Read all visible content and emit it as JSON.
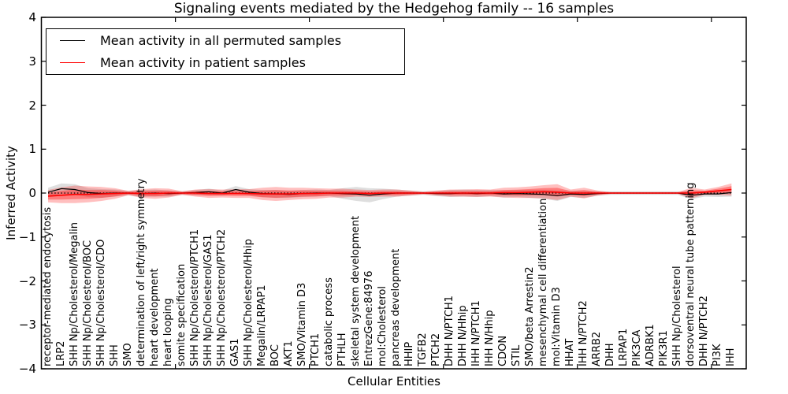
{
  "chart_data": {
    "type": "line",
    "title": "Signaling events mediated by the Hedgehog family -- 16 samples",
    "xlabel": "Cellular Entities",
    "ylabel": "Inferred Activity",
    "ylim": [
      -4,
      4
    ],
    "yticks": [
      4,
      3,
      2,
      1,
      0,
      -1,
      -2,
      -3,
      -4
    ],
    "ytick_labels": [
      "4",
      "3",
      "2",
      "1",
      "0",
      "−1",
      "−2",
      "−3",
      "−4"
    ],
    "xticks": [
      10,
      20,
      30,
      40,
      50
    ],
    "zero_line": true,
    "grid": false,
    "legend": {
      "position": "upper left",
      "entries": [
        {
          "label": "Mean activity in all permuted samples",
          "color": "#000000"
        },
        {
          "label": "Mean activity in patient samples",
          "color": "#ff0000"
        }
      ]
    },
    "categories": [
      "receptor-mediated endocytosis",
      "LRP2",
      "SHH Np/Cholesterol/Megalin",
      "SHH Np/Cholesterol/BOC",
      "SHH Np/Cholesterol/CDO",
      "SHH",
      "SMO",
      "determination of left/right symmetry",
      "heart development",
      "heart looping",
      "somite specification",
      "SHH Np/Cholesterol/PTCH1",
      "SHH Np/Cholesterol/GAS1",
      "SHH Np/Cholesterol/PTCH2",
      "GAS1",
      "SHH Np/Cholesterol/Hhip",
      "Megalin/LRPAP1",
      "BOC",
      "AKT1",
      "SMO/Vitamin D3",
      "PTCH1",
      "catabolic process",
      "PTHLH",
      "skeletal system development",
      "EntrezGene:84976",
      "mol:Cholesterol",
      "pancreas development",
      "HHIP",
      "TGFB2",
      "PTCH2",
      "DHH N/PTCH1",
      "DHH N/Hhip",
      "IHH N/PTCH1",
      "IHH N/Hhip",
      "CDON",
      "STIL",
      "SMO/beta Arrestin2",
      "mesenchymal cell differentiation",
      "mol:Vitamin D3",
      "HHAT",
      "IHH N/PTCH2",
      "ARRB2",
      "DHH",
      "LRPAP1",
      "PIK3CA",
      "ADRBK1",
      "PIK3R1",
      "SHH Np/Cholesterol",
      "dorsoventral neural tube patterning",
      "DHH N/PTCH2",
      "PI3K",
      "IHH"
    ],
    "series": [
      {
        "name": "Mean activity in all permuted samples",
        "color": "#000000",
        "band_color": "#a0a0a0",
        "values": [
          0.02,
          0.1,
          0.08,
          0.01,
          -0.01,
          0,
          0,
          -0.01,
          0,
          -0.01,
          0,
          0.01,
          0.03,
          0,
          0.08,
          0.02,
          -0.01,
          -0.02,
          -0.03,
          -0.01,
          0,
          0,
          -0.01,
          -0.02,
          -0.05,
          -0.02,
          0,
          0,
          0,
          -0.01,
          -0.01,
          0,
          -0.01,
          0,
          -0.02,
          -0.01,
          -0.02,
          -0.03,
          -0.06,
          -0.02,
          -0.03,
          -0.01,
          0,
          0,
          0,
          0,
          0,
          0,
          -0.05,
          -0.02,
          -0.02,
          0.01
        ],
        "band_halfwidth": [
          0.1,
          0.12,
          0.12,
          0.1,
          0.1,
          0.08,
          0.05,
          0.08,
          0.08,
          0.07,
          0.04,
          0.06,
          0.07,
          0.06,
          0.08,
          0.07,
          0.08,
          0.09,
          0.08,
          0.08,
          0.08,
          0.07,
          0.12,
          0.16,
          0.16,
          0.12,
          0.08,
          0.06,
          0.04,
          0.06,
          0.08,
          0.08,
          0.08,
          0.07,
          0.08,
          0.08,
          0.09,
          0.1,
          0.12,
          0.07,
          0.08,
          0.05,
          0.04,
          0.04,
          0.04,
          0.04,
          0.04,
          0.04,
          0.09,
          0.06,
          0.07,
          0.09
        ]
      },
      {
        "name": "Mean activity in patient samples",
        "color": "#ff0000",
        "band_color": "#ff0000",
        "values": [
          -0.07,
          -0.05,
          -0.03,
          -0.03,
          -0.02,
          -0.01,
          0,
          -0.01,
          -0.01,
          0,
          0,
          0,
          -0.01,
          -0.01,
          -0.01,
          -0.01,
          -0.02,
          -0.02,
          -0.02,
          -0.01,
          -0.01,
          0,
          0,
          0,
          -0.01,
          0,
          0,
          0,
          0,
          0,
          0,
          0,
          0,
          0,
          0.01,
          0.01,
          0.02,
          0.03,
          0.02,
          0,
          0,
          0,
          0,
          0,
          0,
          0,
          0,
          0,
          0,
          0.02,
          0.05,
          0.08
        ],
        "band_halfwidth": [
          0.14,
          0.18,
          0.2,
          0.18,
          0.16,
          0.12,
          0.05,
          0.1,
          0.12,
          0.1,
          0.04,
          0.08,
          0.1,
          0.09,
          0.1,
          0.1,
          0.14,
          0.16,
          0.14,
          0.13,
          0.12,
          0.1,
          0.1,
          0.08,
          0.08,
          0.08,
          0.08,
          0.06,
          0.03,
          0.06,
          0.08,
          0.08,
          0.09,
          0.08,
          0.11,
          0.12,
          0.13,
          0.15,
          0.18,
          0.08,
          0.12,
          0.06,
          0.02,
          0.02,
          0.02,
          0.02,
          0.02,
          0.02,
          0.12,
          0.06,
          0.09,
          0.14
        ]
      }
    ]
  }
}
